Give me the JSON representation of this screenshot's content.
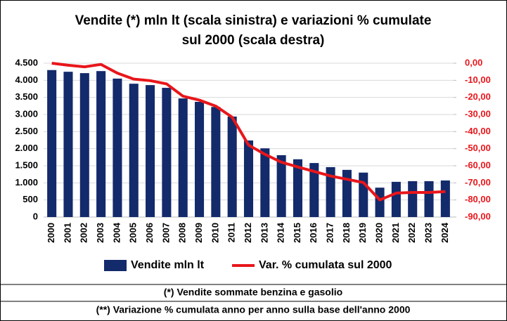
{
  "chart_data": {
    "type": "bar-line",
    "title": [
      "Vendite (*) mln lt (scala sinistra) e variazioni % cumulate",
      "sul 2000 (scala destra)"
    ],
    "categories": [
      "2000",
      "2001",
      "2002",
      "2003",
      "2004",
      "2005",
      "2006",
      "2007",
      "2008",
      "2009",
      "2010",
      "2011",
      "2012",
      "2013",
      "2014",
      "2015",
      "2016",
      "2017",
      "2018",
      "2019",
      "2020",
      "2021",
      "2022",
      "2023",
      "2024"
    ],
    "series": [
      {
        "name": "Vendite mln lt",
        "type": "bar",
        "color": "#132a6b",
        "values": [
          4300,
          4250,
          4210,
          4270,
          4050,
          3900,
          3860,
          3780,
          3470,
          3370,
          3220,
          2940,
          2240,
          2010,
          1810,
          1690,
          1580,
          1460,
          1380,
          1300,
          860,
          1030,
          1050,
          1050,
          1070
        ]
      },
      {
        "name": "Var. % cumulata sul 2000",
        "type": "line",
        "axis": "y2",
        "color": "#e8161b",
        "values": [
          0,
          -1.2,
          -2.1,
          -0.7,
          -5.8,
          -9.3,
          -10.2,
          -12.1,
          -19.3,
          -21.6,
          -25.1,
          -31.6,
          -47.9,
          -53.3,
          -57.9,
          -60.7,
          -63.3,
          -66.0,
          -67.9,
          -69.8,
          -80.0,
          -76.0,
          -75.6,
          -75.6,
          -75.1
        ]
      }
    ],
    "ylim": [
      0,
      4500
    ],
    "yticks": [
      0,
      500,
      {
        "value": 1000,
        "label": "1.000"
      },
      {
        "value": 1500,
        "label": "1.500"
      },
      {
        "value": 2000,
        "label": "2.000"
      },
      {
        "value": 2500,
        "label": "2.500"
      },
      {
        "value": 3000,
        "label": "3.000"
      },
      {
        "value": 3500,
        "label": "3.500"
      },
      {
        "value": 4000,
        "label": "4.000"
      },
      {
        "value": 4500,
        "label": "4.500"
      }
    ],
    "y2lim": [
      -90,
      0
    ],
    "y2ticks": [
      {
        "value": 0,
        "label": "0,00"
      },
      {
        "value": -10,
        "label": "-10,00"
      },
      {
        "value": -20,
        "label": "-20,00"
      },
      {
        "value": -30,
        "label": "-30,00"
      },
      {
        "value": -40,
        "label": "-40,00"
      },
      {
        "value": -50,
        "label": "-50,00"
      },
      {
        "value": -60,
        "label": "-60,00"
      },
      {
        "value": -70,
        "label": "-70,00"
      },
      {
        "value": -80,
        "label": "-80,00"
      },
      {
        "value": -90,
        "label": "-90,00"
      }
    ],
    "y2_tick_color": "#e8161b",
    "grid": true,
    "legend": "bottom"
  },
  "notes": [
    "(*) Vendite sommate benzina e gasolio",
    "(**) Variazione % cumulata anno per anno sulla base dell'anno 2000"
  ]
}
